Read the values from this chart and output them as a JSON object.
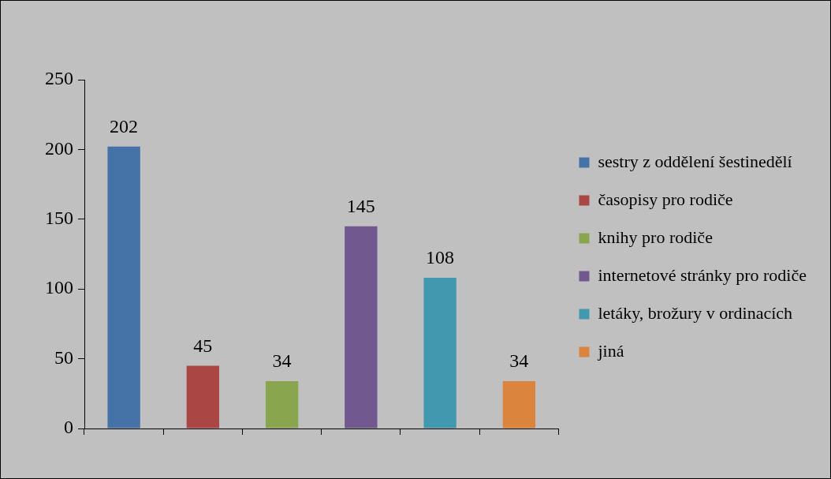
{
  "chart_data": {
    "type": "bar",
    "categories": [
      null,
      null,
      null,
      null,
      null,
      null
    ],
    "series": [
      {
        "name": "sestry z oddělení šestinedělí",
        "color": "#4572a7",
        "values": [
          202,
          null,
          null,
          null,
          null,
          null
        ]
      },
      {
        "name": "časopisy pro rodiče",
        "color": "#aa4643",
        "values": [
          null,
          45,
          null,
          null,
          null,
          null
        ]
      },
      {
        "name": "knihy pro rodiče",
        "color": "#89a54e",
        "values": [
          null,
          null,
          34,
          null,
          null,
          null
        ]
      },
      {
        "name": "internetové stránky pro rodiče",
        "color": "#71588f",
        "values": [
          null,
          null,
          null,
          145,
          null,
          null
        ]
      },
      {
        "name": "letáky, brožury v ordinacích",
        "color": "#4198af",
        "values": [
          null,
          null,
          null,
          null,
          108,
          null
        ]
      },
      {
        "name": "jiná",
        "color": "#db843d",
        "values": [
          null,
          null,
          null,
          null,
          null,
          34
        ]
      }
    ],
    "ylim": [
      0,
      250
    ],
    "yticks": [
      0,
      50,
      100,
      150,
      200,
      250
    ],
    "grid": false,
    "legend": "right",
    "data_labels": true
  }
}
